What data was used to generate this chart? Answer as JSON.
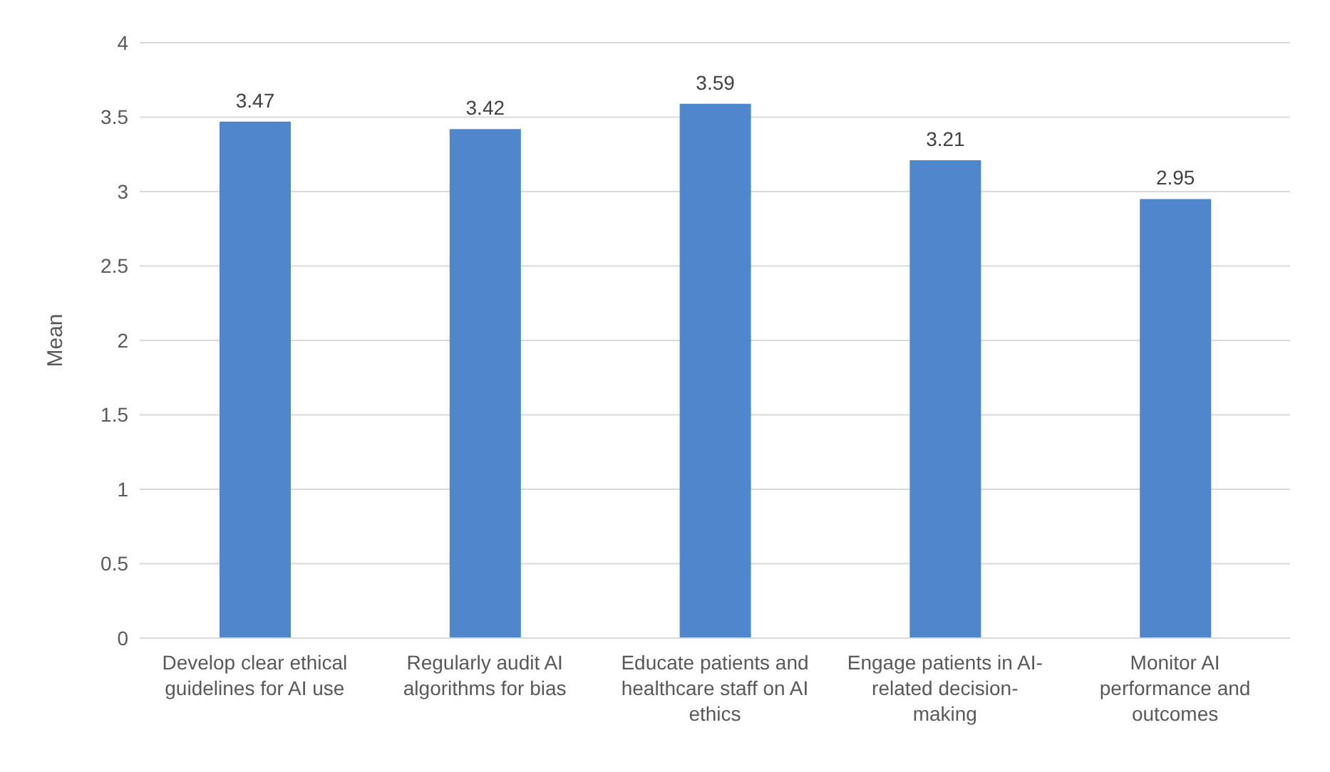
{
  "chart_data": {
    "type": "bar",
    "ylabel": "Mean",
    "categories": [
      "Develop clear ethical guidelines for AI use",
      "Regularly audit AI algorithms for bias",
      "Educate patients and healthcare staff on AI ethics",
      "Engage patients in AI-related decision-making",
      "Monitor AI performance and outcomes"
    ],
    "values": [
      3.47,
      3.42,
      3.59,
      3.21,
      2.95
    ],
    "color": "#4f86cc",
    "ylim": [
      0,
      4
    ],
    "yticks": [
      0,
      0.5,
      1,
      1.5,
      2,
      2.5,
      3,
      3.5,
      4
    ],
    "grid": "y",
    "data_labels": true
  }
}
